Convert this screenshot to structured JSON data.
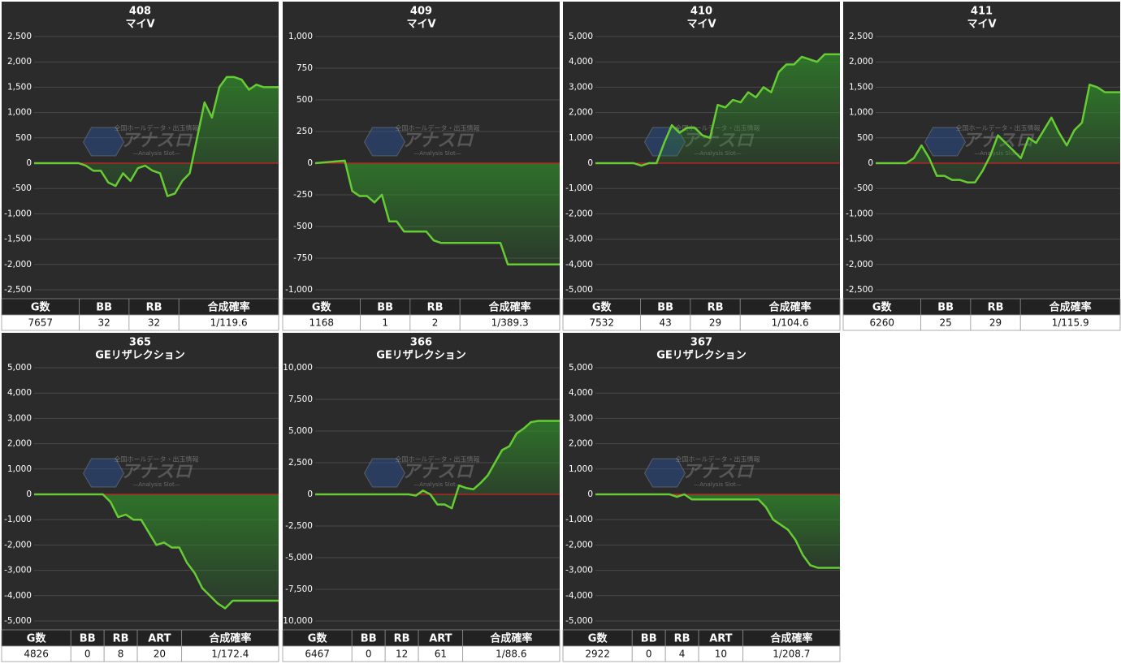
{
  "watermark": {
    "caption": "全国ホールデータ・出玉情報",
    "logo": "アナスロ",
    "tagline": "—Analysis Slot—"
  },
  "chart_data": [
    {
      "type": "area",
      "title": "408",
      "subtitle": "マイV",
      "color": "#66cc33",
      "values": [
        0,
        0,
        0,
        0,
        0,
        0,
        0,
        -50,
        -150,
        -150,
        -380,
        -450,
        -200,
        -350,
        -100,
        -50,
        -150,
        -200,
        -650,
        -600,
        -350,
        -200,
        500,
        1200,
        900,
        1500,
        1700,
        1700,
        1650,
        1450,
        1550,
        1500,
        1500,
        1500
      ],
      "ylim": [
        -2500,
        2500
      ],
      "yticks": [
        {
          "value": -2500,
          "label": "-2,500"
        },
        {
          "value": -2000,
          "label": "-2,000"
        },
        {
          "value": -1500,
          "label": "-1,500"
        },
        {
          "value": -1000,
          "label": "-1,000"
        },
        -500,
        0,
        500,
        {
          "value": 1000,
          "label": "1,000"
        },
        {
          "value": 1500,
          "label": "1,500"
        },
        {
          "value": 2000,
          "label": "2,000"
        },
        {
          "value": 2500,
          "label": "2,500"
        }
      ],
      "table": {
        "headers": [
          "G数",
          "BB",
          "RB",
          "合成確率"
        ],
        "rows": [
          [
            "7657",
            "32",
            "32",
            "1/119.6"
          ]
        ]
      }
    },
    {
      "type": "area",
      "title": "409",
      "subtitle": "マイV",
      "color": "#66cc33",
      "values": [
        0,
        5,
        10,
        15,
        20,
        -220,
        -260,
        -260,
        -310,
        -250,
        -460,
        -460,
        -540,
        -540,
        -540,
        -540,
        -610,
        -630,
        -630,
        -630,
        -630,
        -630,
        -630,
        -630,
        -630,
        -630,
        -800,
        -800,
        -800,
        -800,
        -800,
        -800,
        -800,
        -800
      ],
      "ylim": [
        -1000,
        1000
      ],
      "yticks": [
        {
          "value": -1000,
          "label": "-1,000"
        },
        -750,
        -500,
        -250,
        0,
        250,
        500,
        750,
        {
          "value": 1000,
          "label": "1,000"
        }
      ],
      "table": {
        "headers": [
          "G数",
          "BB",
          "RB",
          "合成確率"
        ],
        "rows": [
          [
            "1168",
            "1",
            "2",
            "1/389.3"
          ]
        ]
      }
    },
    {
      "type": "area",
      "title": "410",
      "subtitle": "マイV",
      "color": "#66cc33",
      "values": [
        0,
        0,
        0,
        0,
        0,
        0,
        -100,
        0,
        0,
        800,
        1500,
        1200,
        1400,
        1400,
        1100,
        1000,
        2300,
        2200,
        2500,
        2400,
        2800,
        2600,
        3000,
        2800,
        3600,
        3900,
        3900,
        4200,
        4100,
        4000,
        4300,
        4300,
        4300
      ],
      "ylim": [
        -5000,
        5000
      ],
      "yticks": [
        {
          "value": -5000,
          "label": "-5,000"
        },
        {
          "value": -4000,
          "label": "-4,000"
        },
        {
          "value": -3000,
          "label": "-3,000"
        },
        {
          "value": -2000,
          "label": "-2,000"
        },
        {
          "value": -1000,
          "label": "-1,000"
        },
        0,
        {
          "value": 1000,
          "label": "1,000"
        },
        {
          "value": 2000,
          "label": "2,000"
        },
        {
          "value": 3000,
          "label": "3,000"
        },
        {
          "value": 4000,
          "label": "4,000"
        },
        {
          "value": 5000,
          "label": "5,000"
        }
      ],
      "table": {
        "headers": [
          "G数",
          "BB",
          "RB",
          "合成確率"
        ],
        "rows": [
          [
            "7532",
            "43",
            "29",
            "1/104.6"
          ]
        ]
      }
    },
    {
      "type": "area",
      "title": "411",
      "subtitle": "マイV",
      "color": "#66cc33",
      "values": [
        0,
        0,
        0,
        0,
        0,
        100,
        350,
        100,
        -250,
        -250,
        -330,
        -330,
        -380,
        -380,
        -150,
        150,
        550,
        400,
        250,
        100,
        500,
        400,
        650,
        900,
        600,
        350,
        650,
        800,
        1550,
        1500,
        1400,
        1400,
        1400
      ],
      "ylim": [
        -2500,
        2500
      ],
      "yticks": [
        {
          "value": -2500,
          "label": "-2,500"
        },
        {
          "value": -2000,
          "label": "-2,000"
        },
        {
          "value": -1500,
          "label": "-1,500"
        },
        {
          "value": -1000,
          "label": "-1,000"
        },
        -500,
        0,
        500,
        {
          "value": 1000,
          "label": "1,000"
        },
        {
          "value": 1500,
          "label": "1,500"
        },
        {
          "value": 2000,
          "label": "2,000"
        },
        {
          "value": 2500,
          "label": "2,500"
        }
      ],
      "table": {
        "headers": [
          "G数",
          "BB",
          "RB",
          "合成確率"
        ],
        "rows": [
          [
            "6260",
            "25",
            "29",
            "1/115.9"
          ]
        ]
      }
    },
    {
      "type": "area",
      "title": "365",
      "subtitle": "GEリザレクション",
      "color": "#66cc33",
      "values": [
        0,
        0,
        0,
        0,
        0,
        0,
        0,
        0,
        0,
        0,
        -300,
        -900,
        -800,
        -1000,
        -1000,
        -1500,
        -2000,
        -1900,
        -2100,
        -2100,
        -2700,
        -3100,
        -3700,
        -4000,
        -4300,
        -4500,
        -4200,
        -4200,
        -4200,
        -4200,
        -4200,
        -4200,
        -4200
      ],
      "ylim": [
        -5000,
        5000
      ],
      "yticks": [
        {
          "value": -5000,
          "label": "-5,000"
        },
        {
          "value": -4000,
          "label": "-4,000"
        },
        {
          "value": -3000,
          "label": "-3,000"
        },
        {
          "value": -2000,
          "label": "-2,000"
        },
        {
          "value": -1000,
          "label": "-1,000"
        },
        0,
        {
          "value": 1000,
          "label": "1,000"
        },
        {
          "value": 2000,
          "label": "2,000"
        },
        {
          "value": 3000,
          "label": "3,000"
        },
        {
          "value": 4000,
          "label": "4,000"
        },
        {
          "value": 5000,
          "label": "5,000"
        }
      ],
      "table": {
        "headers": [
          "G数",
          "BB",
          "RB",
          "ART",
          "合成確率"
        ],
        "rows": [
          [
            "4826",
            "0",
            "8",
            "20",
            "1/172.4"
          ]
        ]
      }
    },
    {
      "type": "area",
      "title": "366",
      "subtitle": "GEリザレクション",
      "color": "#66cc33",
      "values": [
        0,
        0,
        0,
        0,
        0,
        0,
        0,
        0,
        0,
        0,
        0,
        0,
        0,
        0,
        -100,
        300,
        0,
        -800,
        -800,
        -1100,
        700,
        500,
        400,
        900,
        1500,
        2500,
        3500,
        3800,
        4800,
        5200,
        5700,
        5800,
        5800,
        5800,
        5800
      ],
      "ylim": [
        -10000,
        10000
      ],
      "yticks": [
        {
          "value": -10000,
          "label": "-10,000"
        },
        {
          "value": -7500,
          "label": "-7,500"
        },
        {
          "value": -5000,
          "label": "-5,000"
        },
        {
          "value": -2500,
          "label": "-2,500"
        },
        0,
        {
          "value": 2500,
          "label": "2,500"
        },
        {
          "value": 5000,
          "label": "5,000"
        },
        {
          "value": 7500,
          "label": "7,500"
        },
        {
          "value": 10000,
          "label": "10,000"
        }
      ],
      "table": {
        "headers": [
          "G数",
          "BB",
          "RB",
          "ART",
          "合成確率"
        ],
        "rows": [
          [
            "6467",
            "0",
            "12",
            "61",
            "1/88.6"
          ]
        ]
      }
    },
    {
      "type": "area",
      "title": "367",
      "subtitle": "GEリザレクション",
      "color": "#66cc33",
      "values": [
        0,
        0,
        0,
        0,
        0,
        0,
        0,
        0,
        0,
        0,
        0,
        -100,
        0,
        -200,
        -200,
        -200,
        -200,
        -200,
        -200,
        -200,
        -200,
        -200,
        -200,
        -500,
        -1000,
        -1200,
        -1400,
        -1800,
        -2400,
        -2800,
        -2900,
        -2900,
        -2900,
        -2900
      ],
      "ylim": [
        -5000,
        5000
      ],
      "yticks": [
        {
          "value": -5000,
          "label": "-5,000"
        },
        {
          "value": -4000,
          "label": "-4,000"
        },
        {
          "value": -3000,
          "label": "-3,000"
        },
        {
          "value": -2000,
          "label": "-2,000"
        },
        {
          "value": -1000,
          "label": "-1,000"
        },
        0,
        {
          "value": 1000,
          "label": "1,000"
        },
        {
          "value": 2000,
          "label": "2,000"
        },
        {
          "value": 3000,
          "label": "3,000"
        },
        {
          "value": 4000,
          "label": "4,000"
        },
        {
          "value": 5000,
          "label": "5,000"
        }
      ],
      "table": {
        "headers": [
          "G数",
          "BB",
          "RB",
          "ART",
          "合成確率"
        ],
        "rows": [
          [
            "2922",
            "0",
            "4",
            "10",
            "1/208.7"
          ]
        ]
      }
    }
  ]
}
